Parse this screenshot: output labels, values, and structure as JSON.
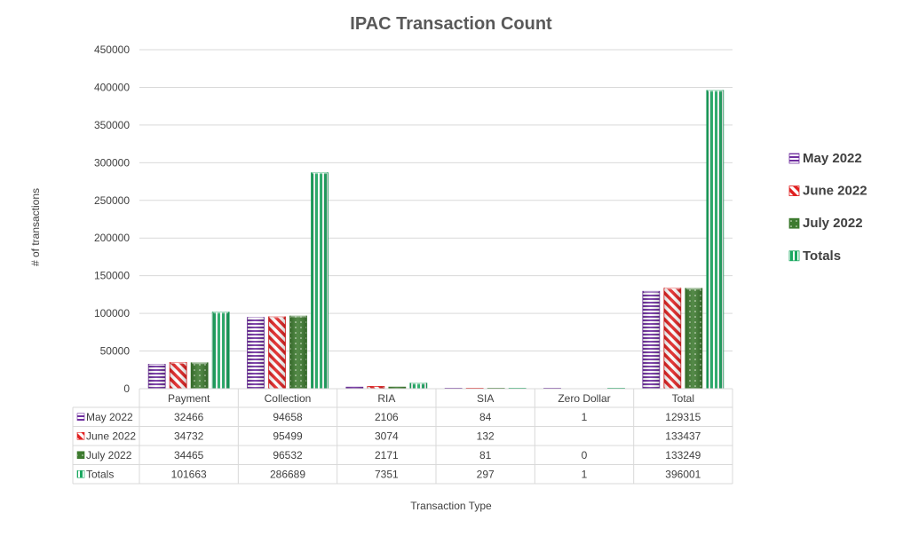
{
  "chart_data": {
    "type": "bar",
    "title": "IPAC Transaction Count",
    "xlabel": "Transaction Type",
    "ylabel": "# of transactions",
    "ylim": [
      0,
      450000
    ],
    "yticks": [
      0,
      50000,
      100000,
      150000,
      200000,
      250000,
      300000,
      350000,
      400000,
      450000
    ],
    "categories": [
      "Payment",
      "Collection",
      "RIA",
      "SIA",
      "Zero Dollar",
      "Total"
    ],
    "series": [
      {
        "name": "May 2022",
        "color": "#7030a0",
        "pattern": "horizontal-stripes",
        "values": [
          32466,
          94658,
          2106,
          84,
          1,
          129315
        ],
        "labels": [
          "32466",
          "94658",
          "2106",
          "84",
          "1",
          "129315"
        ]
      },
      {
        "name": "June 2022",
        "color": "#e02020",
        "pattern": "diagonal-stripes",
        "values": [
          34732,
          95499,
          3074,
          132,
          null,
          133437
        ],
        "labels": [
          "34732",
          "95499",
          "3074",
          "132",
          "",
          "133437"
        ]
      },
      {
        "name": "July 2022",
        "color": "#3d7a2f",
        "pattern": "dots",
        "values": [
          34465,
          96532,
          2171,
          81,
          0,
          133249
        ],
        "labels": [
          "34465",
          "96532",
          "2171",
          "81",
          "0",
          "133249"
        ]
      },
      {
        "name": "Totals",
        "color": "#1aa860",
        "pattern": "vertical-stripes",
        "values": [
          101663,
          286689,
          7351,
          297,
          1,
          396001
        ],
        "labels": [
          "101663",
          "286689",
          "7351",
          "297",
          "1",
          "396001"
        ]
      }
    ],
    "grid": true,
    "legend": "right",
    "data_table": true
  }
}
